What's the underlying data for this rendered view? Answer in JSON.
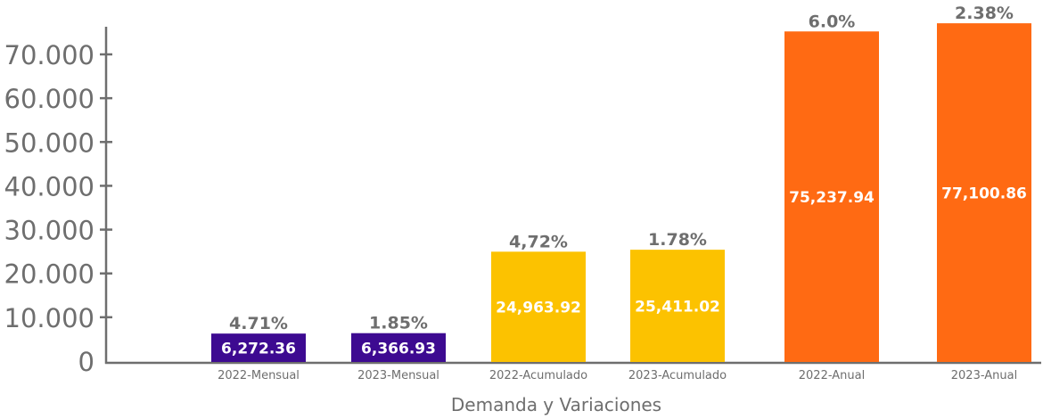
{
  "chart_data": {
    "type": "bar",
    "title": "",
    "xlabel": "Demanda y Variaciones",
    "ylabel": "",
    "ylim": [
      0,
      70000
    ],
    "yticks": [
      0,
      10000,
      20000,
      30000,
      40000,
      50000,
      60000,
      70000
    ],
    "ytick_labels": [
      "0",
      "10.000",
      "20.000",
      "30.000",
      "40.000",
      "50.000",
      "60.000",
      "70.000"
    ],
    "categories": [
      "2022-Mensual",
      "2023-Mensual",
      "2022-Acumulado",
      "2023-Acumulado",
      "2022-Anual",
      "2023-Anual"
    ],
    "values": [
      6272.36,
      6366.93,
      24963.92,
      25411.02,
      75237.94,
      77100.86
    ],
    "value_labels": [
      "6,272.36",
      "6,366.93",
      "24,963.92",
      "25,411.02",
      "75,237.94",
      "77,100.86"
    ],
    "variation_labels": [
      "4.71%",
      "1.85%",
      "4,72%",
      "1.78%",
      "6.0%",
      "2.38%"
    ],
    "colors": [
      "#3d0a91",
      "#3d0a91",
      "#fcc200",
      "#fcc200",
      "#ff6a13",
      "#ff6a13"
    ],
    "grid": false,
    "legend": "none"
  }
}
